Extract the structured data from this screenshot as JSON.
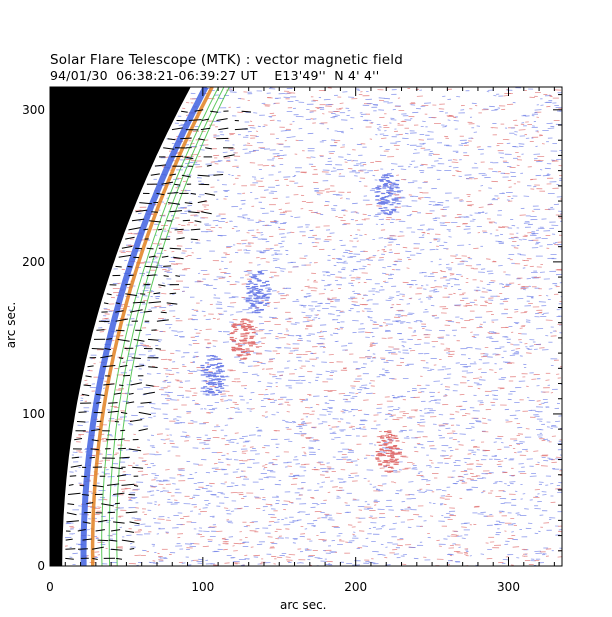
{
  "header": {
    "title_line1": "Solar Flare Telescope (MTK) : vector magnetic field",
    "title_line2": "94/01/30  06:38:21-06:39:27 UT    E13'49''  N 4' 4''"
  },
  "chart_data": {
    "type": "heatmap",
    "title": "Solar Flare Telescope (MTK) : vector magnetic field",
    "subtitle": "94/01/30  06:38:21-06:39:27 UT    E13'49''  N 4' 4''",
    "xlabel": "arc sec.",
    "ylabel": "arc sec.",
    "xlim": [
      0,
      335
    ],
    "ylim": [
      0,
      315
    ],
    "xticks": [
      0,
      100,
      200,
      300
    ],
    "yticks": [
      0,
      100,
      200,
      300
    ],
    "colors": {
      "off_disk": "#000000",
      "positive_polarity": "#e07070",
      "negative_polarity": "#7080e8",
      "limb_contours": [
        "#40c040",
        "#e08020",
        "#4060e0"
      ],
      "vectors": "#000000"
    },
    "features": [
      {
        "polarity": "negative",
        "x": 105,
        "y": 125
      },
      {
        "polarity": "positive",
        "x": 125,
        "y": 150
      },
      {
        "polarity": "negative",
        "x": 135,
        "y": 180
      },
      {
        "polarity": "positive",
        "x": 220,
        "y": 75
      },
      {
        "polarity": "negative",
        "x": 220,
        "y": 245
      }
    ]
  }
}
